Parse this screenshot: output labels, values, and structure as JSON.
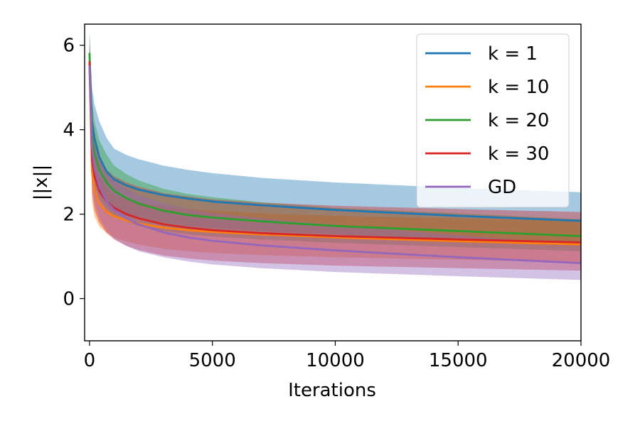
{
  "chart_data": {
    "type": "line",
    "xlabel": "Iterations",
    "ylabel": "||x||",
    "xlim": [
      -200,
      20000
    ],
    "ylim": [
      -1,
      6.5
    ],
    "xticks": [
      0,
      5000,
      10000,
      15000,
      20000
    ],
    "yticks": [
      0,
      2,
      4,
      6
    ],
    "grid": false,
    "legend_position": "top-right",
    "x": [
      0,
      100,
      200,
      400,
      700,
      1000,
      1500,
      2000,
      3000,
      4000,
      5000,
      7000,
      10000,
      15000,
      20000
    ],
    "series": [
      {
        "name": "k = 1",
        "color": "#1f77b4",
        "band_opacity": 0.4,
        "values": [
          5.6,
          4.2,
          3.8,
          3.35,
          3.0,
          2.82,
          2.68,
          2.58,
          2.45,
          2.37,
          2.3,
          2.21,
          2.1,
          1.96,
          1.84
        ],
        "lower": [
          5.3,
          3.3,
          2.9,
          2.5,
          2.2,
          2.05,
          1.95,
          1.88,
          1.78,
          1.72,
          1.67,
          1.6,
          1.52,
          1.36,
          1.24
        ],
        "upper": [
          6.3,
          5.0,
          4.6,
          4.2,
          3.8,
          3.55,
          3.4,
          3.3,
          3.15,
          3.05,
          2.97,
          2.86,
          2.75,
          2.62,
          2.52
        ]
      },
      {
        "name": "k = 10",
        "color": "#ff7f0e",
        "band_opacity": 0.4,
        "values": [
          5.5,
          3.0,
          2.6,
          2.25,
          2.05,
          1.95,
          1.85,
          1.78,
          1.68,
          1.62,
          1.58,
          1.52,
          1.45,
          1.36,
          1.28
        ],
        "lower": [
          5.0,
          2.3,
          1.95,
          1.7,
          1.55,
          1.45,
          1.35,
          1.28,
          1.18,
          1.12,
          1.08,
          1.03,
          0.98,
          0.92,
          0.86
        ],
        "upper": [
          6.0,
          3.8,
          3.3,
          2.9,
          2.6,
          2.45,
          2.35,
          2.28,
          2.18,
          2.12,
          2.08,
          2.02,
          1.96,
          1.9,
          1.84
        ]
      },
      {
        "name": "k = 20",
        "color": "#2ca02c",
        "band_opacity": 0.4,
        "values": [
          5.8,
          3.9,
          3.45,
          3.05,
          2.75,
          2.55,
          2.38,
          2.25,
          2.08,
          1.98,
          1.92,
          1.83,
          1.72,
          1.6,
          1.48
        ],
        "lower": [
          5.3,
          3.1,
          2.7,
          2.35,
          2.1,
          1.95,
          1.82,
          1.72,
          1.6,
          1.52,
          1.47,
          1.4,
          1.32,
          1.22,
          1.12
        ],
        "upper": [
          6.3,
          4.7,
          4.2,
          3.75,
          3.4,
          3.15,
          2.95,
          2.8,
          2.6,
          2.48,
          2.4,
          2.28,
          2.15,
          2.02,
          1.88
        ]
      },
      {
        "name": "k = 30",
        "color": "#d62728",
        "band_opacity": 0.4,
        "values": [
          5.6,
          3.3,
          2.9,
          2.55,
          2.3,
          2.15,
          2.0,
          1.9,
          1.76,
          1.68,
          1.62,
          1.55,
          1.48,
          1.4,
          1.33
        ],
        "lower": [
          5.0,
          2.5,
          2.1,
          1.8,
          1.55,
          1.4,
          1.25,
          1.15,
          1.02,
          0.95,
          0.9,
          0.84,
          0.78,
          0.72,
          0.66
        ],
        "upper": [
          6.2,
          4.1,
          3.7,
          3.3,
          3.05,
          2.9,
          2.75,
          2.65,
          2.5,
          2.42,
          2.35,
          2.27,
          2.2,
          2.12,
          2.05
        ]
      },
      {
        "name": "GD",
        "color": "#9467bd",
        "band_opacity": 0.4,
        "values": [
          5.5,
          3.6,
          3.1,
          2.65,
          2.3,
          2.1,
          1.9,
          1.76,
          1.57,
          1.45,
          1.37,
          1.26,
          1.14,
          0.98,
          0.84
        ],
        "lower": [
          5.0,
          2.8,
          2.3,
          1.9,
          1.6,
          1.42,
          1.25,
          1.12,
          0.98,
          0.88,
          0.81,
          0.72,
          0.63,
          0.53,
          0.44
        ],
        "upper": [
          6.0,
          4.4,
          3.9,
          3.4,
          3.0,
          2.8,
          2.6,
          2.45,
          2.25,
          2.12,
          2.03,
          1.9,
          1.75,
          1.5,
          1.28
        ]
      }
    ]
  }
}
